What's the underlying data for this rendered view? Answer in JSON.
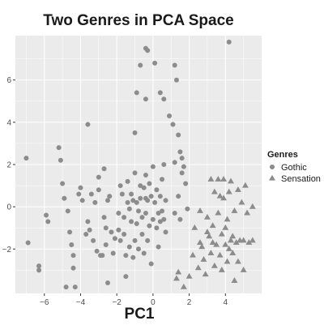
{
  "colors": {
    "panel": "#ebebeb",
    "grid": "#ffffff",
    "point": "#8c8c8c"
  },
  "chart_data": {
    "type": "scatter",
    "title": "Two Genres in PCA Space",
    "xlabel": "PC1",
    "ylabel": "",
    "xlim": [
      -7.6,
      6.0
    ],
    "ylim": [
      -4.1,
      8.1
    ],
    "xticks": [
      -6,
      -4,
      -2,
      0,
      2,
      4
    ],
    "yticks": [
      -2,
      0,
      2,
      4,
      6
    ],
    "grid": true,
    "legend": {
      "title": "Genres",
      "position": "right"
    },
    "series": [
      {
        "name": "Gothic",
        "marker": "circle",
        "points": [
          [
            -7.0,
            2.3
          ],
          [
            -6.9,
            -1.7
          ],
          [
            -6.3,
            -2.8
          ],
          [
            -6.3,
            -3.0
          ],
          [
            -5.9,
            -0.4
          ],
          [
            -5.8,
            -0.7
          ],
          [
            -5.2,
            2.8
          ],
          [
            -5.1,
            2.2
          ],
          [
            -5.0,
            1.1
          ],
          [
            -4.9,
            0.4
          ],
          [
            -4.8,
            -3.8
          ],
          [
            -4.7,
            -0.2
          ],
          [
            -4.6,
            -1.2
          ],
          [
            -4.5,
            -1.8
          ],
          [
            -4.4,
            -2.3
          ],
          [
            -4.4,
            -2.9
          ],
          [
            -4.3,
            -3.8
          ],
          [
            -4.1,
            0.6
          ],
          [
            -4.0,
            0.9
          ],
          [
            -3.9,
            0.3
          ],
          [
            -3.7,
            -1.3
          ],
          [
            -3.6,
            3.9
          ],
          [
            -3.6,
            -0.7
          ],
          [
            -3.5,
            -1.1
          ],
          [
            -3.4,
            0.6
          ],
          [
            -3.3,
            -1.6
          ],
          [
            -3.2,
            0.2
          ],
          [
            -3.1,
            -2.1
          ],
          [
            -3.0,
            1.4
          ],
          [
            -3.0,
            0.8
          ],
          [
            -2.9,
            -2.3
          ],
          [
            -2.8,
            -2.3
          ],
          [
            -2.7,
            1.8
          ],
          [
            -2.7,
            -0.5
          ],
          [
            -2.6,
            -1.0
          ],
          [
            -2.6,
            -1.8
          ],
          [
            -2.5,
            0.3
          ],
          [
            -2.5,
            -3.6
          ],
          [
            -2.4,
            0.5
          ],
          [
            -2.3,
            -1.2
          ],
          [
            -2.2,
            -2.2
          ],
          [
            -2.1,
            -1.5
          ],
          [
            -1.9,
            -0.3
          ],
          [
            -1.9,
            -1.1
          ],
          [
            -1.8,
            1.0
          ],
          [
            -1.7,
            0.6
          ],
          [
            -1.6,
            -0.5
          ],
          [
            -1.6,
            -1.3
          ],
          [
            -1.5,
            -2.3
          ],
          [
            -1.5,
            -3.3
          ],
          [
            -1.4,
            0.2
          ],
          [
            -1.4,
            1.2
          ],
          [
            -1.3,
            -0.1
          ],
          [
            -1.3,
            -1.9
          ],
          [
            -1.2,
            0.6
          ],
          [
            -1.2,
            -0.7
          ],
          [
            -1.1,
            0.3
          ],
          [
            -1.1,
            -2.4
          ],
          [
            -1.0,
            -1.6
          ],
          [
            -1.0,
            1.6
          ],
          [
            -0.9,
            0.2
          ],
          [
            -0.9,
            -0.8
          ],
          [
            -0.8,
            -0.2
          ],
          [
            -0.8,
            -2.0
          ],
          [
            -0.7,
            1.0
          ],
          [
            -0.7,
            0.4
          ],
          [
            -0.6,
            -1.3
          ],
          [
            -0.6,
            -0.5
          ],
          [
            -0.5,
            0.9
          ],
          [
            -0.5,
            -2.2
          ],
          [
            -0.4,
            0.4
          ],
          [
            -0.4,
            1.5
          ],
          [
            -0.4,
            -0.3
          ],
          [
            -0.3,
            -1.6
          ],
          [
            -0.3,
            0.3
          ],
          [
            -0.2,
            1.1
          ],
          [
            -0.2,
            -0.9
          ],
          [
            -0.1,
            0.5
          ],
          [
            -0.1,
            -2.7
          ],
          [
            0.0,
            -0.6
          ],
          [
            0.0,
            1.9
          ],
          [
            0.1,
            0.2
          ],
          [
            0.2,
            -1.0
          ],
          [
            0.2,
            0.8
          ],
          [
            0.3,
            -0.3
          ],
          [
            0.3,
            -1.9
          ],
          [
            0.4,
            0.5
          ],
          [
            0.4,
            -0.7
          ],
          [
            0.5,
            1.3
          ],
          [
            0.5,
            -0.2
          ],
          [
            0.6,
            -0.6
          ],
          [
            0.6,
            2.0
          ],
          [
            0.7,
            0.3
          ],
          [
            0.7,
            -1.2
          ],
          [
            -0.7,
            6.7
          ],
          [
            -0.4,
            7.5
          ],
          [
            -0.3,
            7.4
          ],
          [
            0.1,
            6.8
          ],
          [
            -0.9,
            5.4
          ],
          [
            -0.4,
            5.1
          ],
          [
            0.4,
            5.4
          ],
          [
            0.6,
            5.1
          ],
          [
            -1.0,
            3.5
          ],
          [
            1.2,
            6.7
          ],
          [
            1.3,
            6.0
          ],
          [
            0.9,
            4.3
          ],
          [
            1.1,
            3.9
          ],
          [
            1.4,
            3.4
          ],
          [
            1.2,
            2.1
          ],
          [
            1.5,
            2.6
          ],
          [
            1.6,
            2.3
          ],
          [
            1.7,
            1.9
          ],
          [
            1.6,
            1.6
          ],
          [
            1.8,
            1.1
          ],
          [
            1.4,
            0.5
          ],
          [
            1.5,
            -0.6
          ],
          [
            1.2,
            -0.3
          ],
          [
            1.9,
            -0.1
          ],
          [
            4.2,
            7.8
          ],
          [
            -1.8,
            -1.6
          ]
        ]
      },
      {
        "name": "Sensation",
        "marker": "triangle",
        "points": [
          [
            1.3,
            -3.4
          ],
          [
            1.4,
            -3.1
          ],
          [
            1.7,
            -3.8
          ],
          [
            2.0,
            -3.3
          ],
          [
            2.2,
            -2.3
          ],
          [
            2.3,
            -1.0
          ],
          [
            2.5,
            -2.9
          ],
          [
            2.6,
            -0.2
          ],
          [
            2.6,
            -1.7
          ],
          [
            2.8,
            -2.5
          ],
          [
            2.9,
            -3.2
          ],
          [
            3.0,
            -0.5
          ],
          [
            3.1,
            -1.4
          ],
          [
            3.2,
            1.3
          ],
          [
            3.2,
            -2.2
          ],
          [
            3.3,
            -0.9
          ],
          [
            3.4,
            -2.8
          ],
          [
            3.4,
            0.7
          ],
          [
            3.5,
            -1.8
          ],
          [
            3.6,
            -0.3
          ],
          [
            3.6,
            1.3
          ],
          [
            3.7,
            -2.3
          ],
          [
            3.8,
            -1.3
          ],
          [
            3.8,
            -3.0
          ],
          [
            3.9,
            1.3
          ],
          [
            3.9,
            0.4
          ],
          [
            4.0,
            -1.0
          ],
          [
            4.0,
            -1.8
          ],
          [
            4.1,
            -0.6
          ],
          [
            4.1,
            -2.6
          ],
          [
            4.2,
            0.7
          ],
          [
            4.3,
            -1.6
          ],
          [
            4.3,
            1.2
          ],
          [
            4.4,
            -2.2
          ],
          [
            4.4,
            -1.4
          ],
          [
            4.5,
            -3.5
          ],
          [
            4.5,
            -0.2
          ],
          [
            4.6,
            -1.7
          ],
          [
            4.7,
            -2.6
          ],
          [
            4.7,
            0.8
          ],
          [
            4.8,
            -1.6
          ],
          [
            5.0,
            -1.6
          ],
          [
            5.0,
            -3.0
          ],
          [
            5.1,
            1.0
          ],
          [
            5.2,
            -0.3
          ],
          [
            5.3,
            -1.7
          ],
          [
            5.5,
            0.0
          ],
          [
            5.5,
            -1.6
          ],
          [
            3.3,
            -1.7
          ],
          [
            3.0,
            -1.2
          ],
          [
            4.9,
            0.2
          ],
          [
            2.7,
            -1.9
          ],
          [
            3.7,
            0.5
          ],
          [
            4.2,
            -2.0
          ]
        ]
      }
    ]
  }
}
